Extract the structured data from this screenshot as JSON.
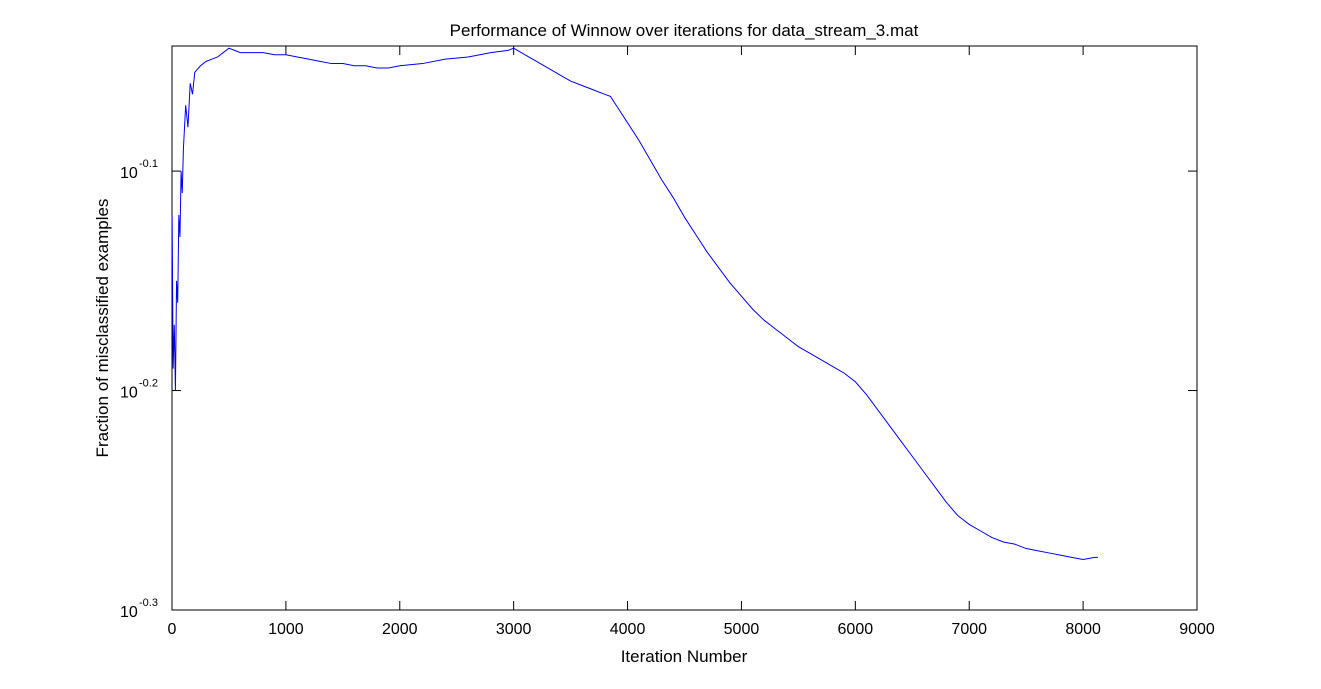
{
  "chart_data": {
    "type": "line",
    "title": "Performance of Winnow over iterations for data_stream_3.mat",
    "xlabel": "Iteration Number",
    "ylabel": "Fraction of misclassified examples",
    "xlim": [
      0,
      9000
    ],
    "ylim_log10": [
      -0.3,
      -0.043
    ],
    "yscale": "log",
    "grid": false,
    "x_ticks": [
      0,
      1000,
      2000,
      3000,
      4000,
      5000,
      6000,
      7000,
      8000,
      9000
    ],
    "x_tick_labels": [
      "0",
      "1000",
      "2000",
      "3000",
      "4000",
      "5000",
      "6000",
      "7000",
      "8000",
      "9000"
    ],
    "y_ticks_log10": [
      -0.1,
      -0.2,
      -0.3
    ],
    "y_tick_labels": [
      {
        "base": "10",
        "exp": "-0.1"
      },
      {
        "base": "10",
        "exp": "-0.2"
      },
      {
        "base": "10",
        "exp": "-0.3"
      }
    ],
    "line_color": "#0000ff",
    "series": [
      {
        "x": [
          1,
          10,
          20,
          30,
          40,
          50,
          60,
          70,
          80,
          90,
          100,
          120,
          140,
          160,
          180,
          200,
          250,
          300,
          350,
          400,
          450,
          500,
          550,
          600,
          700,
          800,
          900,
          1000,
          1100,
          1200,
          1300,
          1400,
          1500,
          1600,
          1700,
          1800,
          1900,
          2000,
          2200,
          2400,
          2600,
          2800,
          2950,
          3000,
          3100,
          3200,
          3300,
          3400,
          3500,
          3600,
          3700,
          3800,
          3850,
          3900,
          4000,
          4100,
          4200,
          4300,
          4400,
          4500,
          4600,
          4700,
          4800,
          4900,
          5000,
          5100,
          5200,
          5300,
          5400,
          5500,
          5600,
          5700,
          5800,
          5900,
          6000,
          6100,
          6200,
          6300,
          6400,
          6500,
          6600,
          6700,
          6800,
          6900,
          6950,
          7000,
          7100,
          7200,
          7300,
          7400,
          7500,
          7600,
          7700,
          7800,
          7900,
          8000,
          8100,
          8130
        ],
        "y_log10": [
          -0.12,
          -0.19,
          -0.17,
          -0.2,
          -0.15,
          -0.16,
          -0.12,
          -0.13,
          -0.1,
          -0.11,
          -0.09,
          -0.07,
          -0.08,
          -0.06,
          -0.065,
          -0.055,
          -0.052,
          -0.05,
          -0.049,
          -0.048,
          -0.046,
          -0.044,
          -0.045,
          -0.046,
          -0.046,
          -0.046,
          -0.047,
          -0.047,
          -0.048,
          -0.049,
          -0.05,
          -0.051,
          -0.051,
          -0.052,
          -0.052,
          -0.053,
          -0.053,
          -0.052,
          -0.051,
          -0.049,
          -0.048,
          -0.046,
          -0.045,
          -0.044,
          -0.047,
          -0.05,
          -0.053,
          -0.056,
          -0.059,
          -0.061,
          -0.063,
          -0.065,
          -0.066,
          -0.07,
          -0.078,
          -0.086,
          -0.095,
          -0.104,
          -0.112,
          -0.121,
          -0.129,
          -0.137,
          -0.144,
          -0.151,
          -0.157,
          -0.163,
          -0.168,
          -0.172,
          -0.176,
          -0.18,
          -0.183,
          -0.186,
          -0.189,
          -0.192,
          -0.196,
          -0.202,
          -0.209,
          -0.216,
          -0.223,
          -0.23,
          -0.237,
          -0.244,
          -0.251,
          -0.257,
          -0.259,
          -0.261,
          -0.264,
          -0.267,
          -0.269,
          -0.27,
          -0.272,
          -0.273,
          -0.274,
          -0.275,
          -0.276,
          -0.277,
          -0.276,
          -0.276
        ]
      }
    ]
  }
}
